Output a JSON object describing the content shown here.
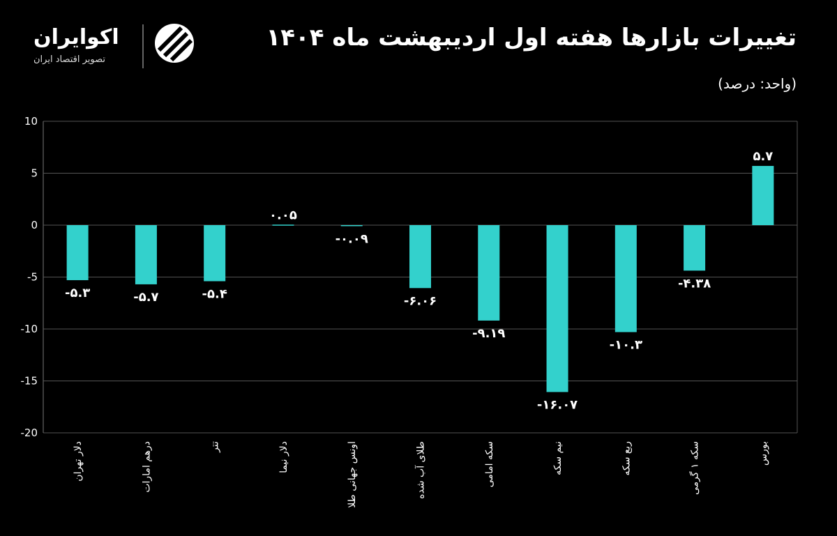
{
  "logo": {
    "name": "اکوایران",
    "tagline": "تصویر اقتصاد ایران"
  },
  "chart_data": {
    "type": "bar",
    "title": "تغییرات بازارها هفته اول اردیبهشت ماه ۱۴۰۴",
    "subtitle": "(واحد: درصد)",
    "categories": [
      "دلار تهران",
      "درهم امارات",
      "تتر",
      "دلار نیما",
      "اونس جهانی طلا",
      "طلای آب شده",
      "سکه امامی",
      "نیم سکه",
      "ربع سکه",
      "سکه ۱ گرمی",
      "بورس"
    ],
    "values": [
      -5.3,
      -5.7,
      -5.4,
      0.05,
      -0.09,
      -6.06,
      -9.19,
      -16.07,
      -10.3,
      -4.38,
      5.7
    ],
    "value_labels": [
      "-۵.۳",
      "-۵.۷",
      "-۵.۴",
      "۰.۰۵",
      "-۰.۰۹",
      "-۶.۰۶",
      "-۹.۱۹",
      "-۱۶.۰۷",
      "-۱۰.۳",
      "-۴.۳۸",
      "۵.۷"
    ],
    "ylim": [
      -20,
      10
    ],
    "yticks": [
      10,
      5,
      0,
      -5,
      -10,
      -15,
      -20
    ],
    "ytick_labels": [
      "10",
      "5",
      "0",
      "-5",
      "-10",
      "-15",
      "-20"
    ],
    "grid": true,
    "bar_color": "#33d1cc",
    "background": "#000000"
  }
}
